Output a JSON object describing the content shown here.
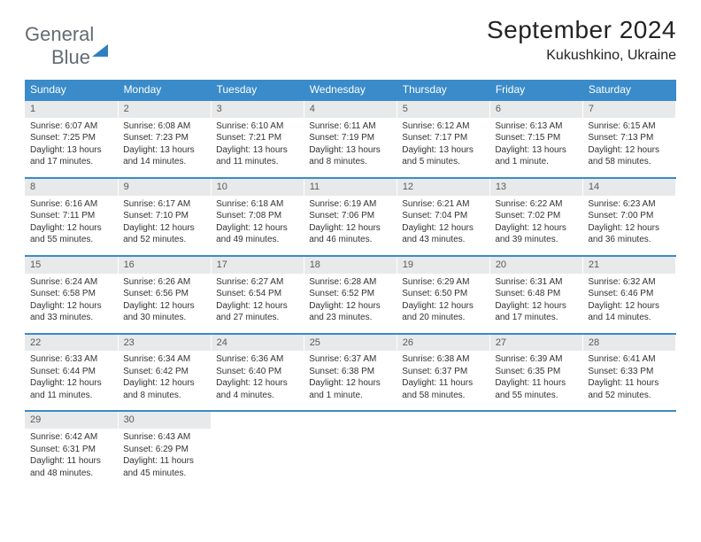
{
  "brand": {
    "part1": "General",
    "part2": "Blue"
  },
  "title": "September 2024",
  "location": "Kukushkino, Ukraine",
  "colors": {
    "header_bg": "#3a8bc9",
    "daynum_bg": "#e8e9ea",
    "rule": "#3a8bc9",
    "text": "#333333",
    "logo_gray": "#646b72",
    "logo_blue": "#2f7fbf"
  },
  "day_names": [
    "Sunday",
    "Monday",
    "Tuesday",
    "Wednesday",
    "Thursday",
    "Friday",
    "Saturday"
  ],
  "weeks": [
    [
      {
        "n": "1",
        "sr": "6:07 AM",
        "ss": "7:25 PM",
        "dl": "13 hours and 17 minutes."
      },
      {
        "n": "2",
        "sr": "6:08 AM",
        "ss": "7:23 PM",
        "dl": "13 hours and 14 minutes."
      },
      {
        "n": "3",
        "sr": "6:10 AM",
        "ss": "7:21 PM",
        "dl": "13 hours and 11 minutes."
      },
      {
        "n": "4",
        "sr": "6:11 AM",
        "ss": "7:19 PM",
        "dl": "13 hours and 8 minutes."
      },
      {
        "n": "5",
        "sr": "6:12 AM",
        "ss": "7:17 PM",
        "dl": "13 hours and 5 minutes."
      },
      {
        "n": "6",
        "sr": "6:13 AM",
        "ss": "7:15 PM",
        "dl": "13 hours and 1 minute."
      },
      {
        "n": "7",
        "sr": "6:15 AM",
        "ss": "7:13 PM",
        "dl": "12 hours and 58 minutes."
      }
    ],
    [
      {
        "n": "8",
        "sr": "6:16 AM",
        "ss": "7:11 PM",
        "dl": "12 hours and 55 minutes."
      },
      {
        "n": "9",
        "sr": "6:17 AM",
        "ss": "7:10 PM",
        "dl": "12 hours and 52 minutes."
      },
      {
        "n": "10",
        "sr": "6:18 AM",
        "ss": "7:08 PM",
        "dl": "12 hours and 49 minutes."
      },
      {
        "n": "11",
        "sr": "6:19 AM",
        "ss": "7:06 PM",
        "dl": "12 hours and 46 minutes."
      },
      {
        "n": "12",
        "sr": "6:21 AM",
        "ss": "7:04 PM",
        "dl": "12 hours and 43 minutes."
      },
      {
        "n": "13",
        "sr": "6:22 AM",
        "ss": "7:02 PM",
        "dl": "12 hours and 39 minutes."
      },
      {
        "n": "14",
        "sr": "6:23 AM",
        "ss": "7:00 PM",
        "dl": "12 hours and 36 minutes."
      }
    ],
    [
      {
        "n": "15",
        "sr": "6:24 AM",
        "ss": "6:58 PM",
        "dl": "12 hours and 33 minutes."
      },
      {
        "n": "16",
        "sr": "6:26 AM",
        "ss": "6:56 PM",
        "dl": "12 hours and 30 minutes."
      },
      {
        "n": "17",
        "sr": "6:27 AM",
        "ss": "6:54 PM",
        "dl": "12 hours and 27 minutes."
      },
      {
        "n": "18",
        "sr": "6:28 AM",
        "ss": "6:52 PM",
        "dl": "12 hours and 23 minutes."
      },
      {
        "n": "19",
        "sr": "6:29 AM",
        "ss": "6:50 PM",
        "dl": "12 hours and 20 minutes."
      },
      {
        "n": "20",
        "sr": "6:31 AM",
        "ss": "6:48 PM",
        "dl": "12 hours and 17 minutes."
      },
      {
        "n": "21",
        "sr": "6:32 AM",
        "ss": "6:46 PM",
        "dl": "12 hours and 14 minutes."
      }
    ],
    [
      {
        "n": "22",
        "sr": "6:33 AM",
        "ss": "6:44 PM",
        "dl": "12 hours and 11 minutes."
      },
      {
        "n": "23",
        "sr": "6:34 AM",
        "ss": "6:42 PM",
        "dl": "12 hours and 8 minutes."
      },
      {
        "n": "24",
        "sr": "6:36 AM",
        "ss": "6:40 PM",
        "dl": "12 hours and 4 minutes."
      },
      {
        "n": "25",
        "sr": "6:37 AM",
        "ss": "6:38 PM",
        "dl": "12 hours and 1 minute."
      },
      {
        "n": "26",
        "sr": "6:38 AM",
        "ss": "6:37 PM",
        "dl": "11 hours and 58 minutes."
      },
      {
        "n": "27",
        "sr": "6:39 AM",
        "ss": "6:35 PM",
        "dl": "11 hours and 55 minutes."
      },
      {
        "n": "28",
        "sr": "6:41 AM",
        "ss": "6:33 PM",
        "dl": "11 hours and 52 minutes."
      }
    ],
    [
      {
        "n": "29",
        "sr": "6:42 AM",
        "ss": "6:31 PM",
        "dl": "11 hours and 48 minutes."
      },
      {
        "n": "30",
        "sr": "6:43 AM",
        "ss": "6:29 PM",
        "dl": "11 hours and 45 minutes."
      },
      null,
      null,
      null,
      null,
      null
    ]
  ],
  "labels": {
    "sunrise": "Sunrise:",
    "sunset": "Sunset:",
    "daylight": "Daylight:"
  }
}
